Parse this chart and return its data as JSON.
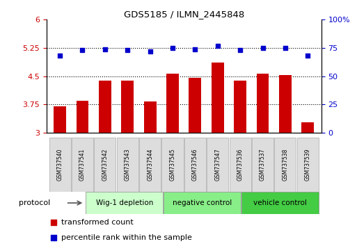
{
  "title": "GDS5185 / ILMN_2445848",
  "samples": [
    "GSM737540",
    "GSM737541",
    "GSM737542",
    "GSM737543",
    "GSM737544",
    "GSM737545",
    "GSM737546",
    "GSM737547",
    "GSM737536",
    "GSM737537",
    "GSM737538",
    "GSM737539"
  ],
  "bar_values": [
    3.7,
    3.85,
    4.38,
    4.38,
    3.84,
    4.57,
    4.46,
    4.87,
    4.38,
    4.57,
    4.53,
    3.28
  ],
  "dot_values": [
    68,
    73,
    74,
    73,
    72,
    75,
    74,
    77,
    73,
    75,
    75,
    68
  ],
  "bar_color": "#cc0000",
  "dot_color": "#0000cc",
  "ylim_left": [
    3,
    6
  ],
  "ylim_right": [
    0,
    100
  ],
  "yticks_left": [
    3,
    3.75,
    4.5,
    5.25,
    6
  ],
  "ytick_labels_left": [
    "3",
    "3.75",
    "4.5",
    "5.25",
    "6"
  ],
  "yticks_right": [
    0,
    25,
    50,
    75,
    100
  ],
  "ytick_labels_right": [
    "0",
    "25",
    "50",
    "75",
    "100%"
  ],
  "hlines": [
    3.75,
    4.5,
    5.25
  ],
  "groups": [
    {
      "label": "Wig-1 depletion",
      "start": 0,
      "end": 4,
      "color": "#ccffcc"
    },
    {
      "label": "negative control",
      "start": 4,
      "end": 8,
      "color": "#88ee88"
    },
    {
      "label": "vehicle control",
      "start": 8,
      "end": 12,
      "color": "#44cc44"
    }
  ],
  "protocol_label": "protocol",
  "legend_bar_label": "transformed count",
  "legend_dot_label": "percentile rank within the sample",
  "bar_width": 0.55,
  "background_color": "#ffffff"
}
